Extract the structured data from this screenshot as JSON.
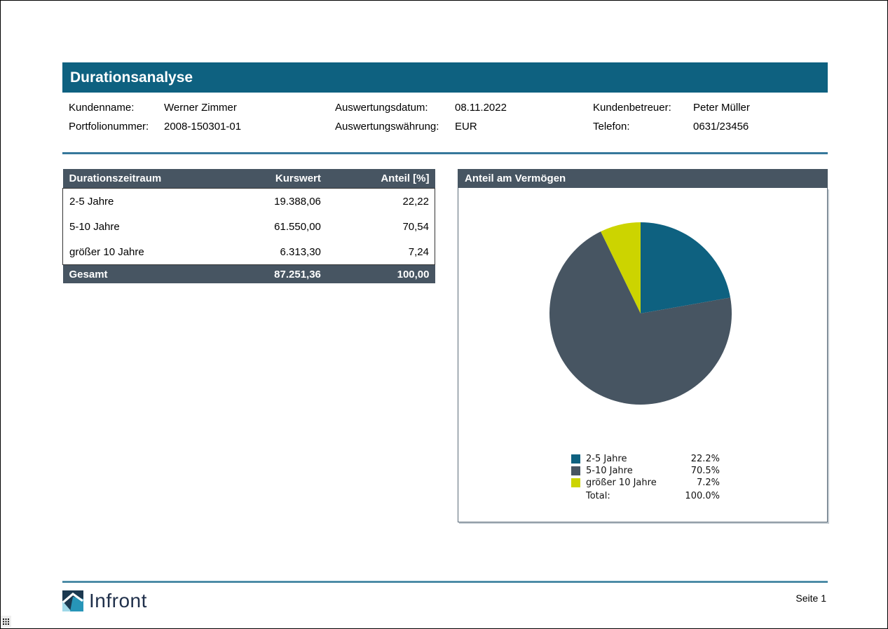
{
  "page": {
    "title": "Durationsanalyse"
  },
  "info": {
    "fields": [
      {
        "label": "Kundenname:",
        "value": "Werner Zimmer"
      },
      {
        "label": "Auswertungsdatum:",
        "value": "08.11.2022"
      },
      {
        "label": "Kundenbetreuer:",
        "value": "Peter Müller"
      },
      {
        "label": "Portfolionummer:",
        "value": "2008-150301-01"
      },
      {
        "label": "Auswertungswährung:",
        "value": "EUR"
      },
      {
        "label": "Telefon:",
        "value": "0631/23456"
      }
    ]
  },
  "table": {
    "headers": [
      "Durationszeitraum",
      "Kurswert",
      "Anteil [%]"
    ],
    "rows": [
      [
        "2-5 Jahre",
        "19.388,06",
        "22,22"
      ],
      [
        "5-10 Jahre",
        "61.550,00",
        "70,54"
      ],
      [
        "größer 10 Jahre",
        "6.313,30",
        "7,24"
      ]
    ],
    "footer": [
      "Gesamt",
      "87.251,36",
      "100,00"
    ]
  },
  "chart_panel": {
    "title": "Anteil am Vermögen"
  },
  "chart_data": {
    "type": "pie",
    "title": "Anteil am Vermögen",
    "start_angle_deg": 0,
    "direction": "clockwise",
    "legend_position": "bottom",
    "slices": [
      {
        "label": "2-5 Jahre",
        "value": 22.2,
        "display": "22.2%",
        "color": "#0e6180"
      },
      {
        "label": "5-10 Jahre",
        "value": 70.5,
        "display": "70.5%",
        "color": "#475562"
      },
      {
        "label": "größer 10 Jahre",
        "value": 7.2,
        "display": "7.2%",
        "color": "#ccd400"
      }
    ],
    "total_label": "Total:",
    "total_display": "100.0%"
  },
  "footer": {
    "brand": "Infront",
    "page_number": "Seite 1"
  },
  "colors": {
    "accent_teal": "#0e6180",
    "slate": "#475562",
    "yellow": "#ccd400",
    "divider": "#36789b"
  }
}
